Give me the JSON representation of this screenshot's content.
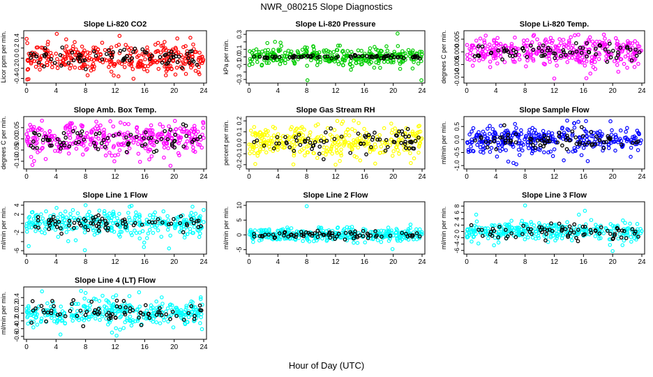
{
  "figure": {
    "title": "NWR_080215  Slope Diagnostics",
    "xlabel": "Hour of Day (UTC)"
  },
  "chart_data": [
    {
      "type": "scatter",
      "title": "Slope Li-820 CO2",
      "ylabel": "Licor ppm per min.",
      "color": "#ff0000",
      "xlim": [
        0,
        24
      ],
      "ylim": [
        -0.45,
        0.5
      ],
      "yticks": [
        -0.4,
        -0.2,
        0.0,
        0.2,
        0.4
      ],
      "ytick_labels": [
        "-0.4",
        "-0.2",
        "0.0",
        "0.2",
        "0.4"
      ],
      "xticks": [
        0,
        4,
        8,
        12,
        16,
        20,
        24
      ],
      "spread": 0.14,
      "black_spread": 0.09,
      "outliers": [
        [
          4.1,
          0.48
        ],
        [
          12.6,
          0.44
        ],
        [
          0.1,
          -0.42
        ],
        [
          18.7,
          0.32
        ],
        [
          23.3,
          -0.28
        ]
      ]
    },
    {
      "type": "scatter",
      "title": "Slope Li-820 Pressure",
      "ylabel": "kPa per min.",
      "color": "#00cc00",
      "xlim": [
        0,
        24
      ],
      "ylim": [
        -0.32,
        0.32
      ],
      "yticks": [
        -0.3,
        -0.2,
        -0.1,
        0.0,
        0.1,
        0.2,
        0.3
      ],
      "ytick_labels": [
        "-0.3",
        "",
        "-0.1",
        "0.0",
        "0.1",
        "",
        "0.3"
      ],
      "xticks": [
        0,
        4,
        8,
        12,
        16,
        20,
        24
      ],
      "spread": 0.06,
      "black_spread": 0.01,
      "outliers": [
        [
          20.6,
          0.31
        ],
        [
          8.1,
          -0.31
        ],
        [
          23.9,
          -0.31
        ],
        [
          3.6,
          0.2
        ],
        [
          12.6,
          0.15
        ]
      ]
    },
    {
      "type": "scatter",
      "title": "Slope Li-820 Temp.",
      "ylabel": "degrees C per min.",
      "color": "#ff00ff",
      "xlim": [
        0,
        24
      ],
      "ylim": [
        -0.0115,
        0.0075
      ],
      "yticks": [
        -0.01,
        -0.005,
        0.0,
        0.005
      ],
      "ytick_labels": [
        "-0.010",
        "-0.005",
        "0.000",
        "0.005"
      ],
      "xticks": [
        0,
        4,
        8,
        12,
        16,
        20,
        24
      ],
      "spread": 0.003,
      "black_spread": 0.0015,
      "outliers": [
        [
          18.8,
          0.0068
        ],
        [
          12.0,
          -0.0105
        ],
        [
          16.4,
          -0.0104
        ],
        [
          2.4,
          0.0045
        ]
      ]
    },
    {
      "type": "scatter",
      "title": "Slope Amb. Box Temp.",
      "ylabel": "degrees C per min.",
      "color": "#ff00ff",
      "xlim": [
        0,
        24
      ],
      "ylim": [
        -0.125,
        0.09
      ],
      "yticks": [
        -0.1,
        -0.05,
        0.0,
        0.05
      ],
      "ytick_labels": [
        "-0.10",
        "-0.05",
        "0.00",
        "0.05"
      ],
      "xticks": [
        0,
        4,
        8,
        12,
        16,
        20,
        24
      ],
      "spread": 0.035,
      "black_spread": 0.025,
      "outliers": [
        [
          19.5,
          -0.12
        ],
        [
          20.1,
          0.08
        ],
        [
          11.9,
          -0.1
        ],
        [
          2.6,
          -0.09
        ]
      ]
    },
    {
      "type": "scatter",
      "title": "Slope Gas Stream RH",
      "ylabel": "percent per min.",
      "color": "#ffff00",
      "xlim": [
        0,
        24
      ],
      "ylim": [
        -0.22,
        0.22
      ],
      "yticks": [
        -0.2,
        -0.1,
        0.0,
        0.1,
        0.2
      ],
      "ytick_labels": [
        "-0.2",
        "-0.1",
        "0.0",
        "0.1",
        "0.2"
      ],
      "xticks": [
        0,
        4,
        8,
        12,
        16,
        20,
        24
      ],
      "spread": 0.08,
      "black_spread": 0.05,
      "outliers": [
        [
          12.0,
          -0.2
        ],
        [
          17.5,
          -0.19
        ],
        [
          15.2,
          0.18
        ],
        [
          23.5,
          0.15
        ]
      ]
    },
    {
      "type": "scatter",
      "title": "Slope Sample Flow",
      "ylabel": "ml/min per min.",
      "color": "#0000ff",
      "xlim": [
        0,
        24
      ],
      "ylim": [
        -1.05,
        0.8
      ],
      "yticks": [
        -1.0,
        -0.5,
        0.0,
        0.5
      ],
      "ytick_labels": [
        "-1.0",
        "-0.5",
        "0.0",
        "0.5"
      ],
      "xticks": [
        0,
        4,
        8,
        12,
        16,
        20,
        24
      ],
      "spread": 0.25,
      "black_spread": 0.2,
      "outliers": [
        [
          6.4,
          -0.9
        ],
        [
          19.7,
          0.7
        ],
        [
          6.8,
          -0.95
        ],
        [
          15.3,
          0.68
        ],
        [
          13.3,
          -0.8
        ]
      ]
    },
    {
      "type": "scatter",
      "title": "Slope Line 1 Flow",
      "ylabel": "ml/min per min.",
      "color": "#00ffff",
      "xlim": [
        0,
        24
      ],
      "ylim": [
        -6.3,
        4.3
      ],
      "yticks": [
        -6,
        -4,
        -2,
        0,
        2,
        4
      ],
      "ytick_labels": [
        "-6",
        "",
        "-2",
        "",
        "2",
        "4"
      ],
      "xticks": [
        0,
        4,
        8,
        12,
        16,
        20,
        24
      ],
      "spread": 1.4,
      "black_spread": 0.9,
      "outliers": [
        [
          8.0,
          4.0
        ],
        [
          7.9,
          -5.9
        ],
        [
          15.9,
          -5.2
        ],
        [
          19.3,
          -5.5
        ],
        [
          0.3,
          -5.0
        ]
      ]
    },
    {
      "type": "scatter",
      "title": "Slope Line 2 Flow",
      "ylabel": "ml/min per min.",
      "color": "#00ffff",
      "xlim": [
        0,
        24
      ],
      "ylim": [
        -5.8,
        10.5
      ],
      "yticks": [
        -5,
        0,
        5,
        10
      ],
      "ytick_labels": [
        "-5",
        "0",
        "5",
        "10"
      ],
      "xticks": [
        0,
        4,
        8,
        12,
        16,
        20,
        24
      ],
      "spread": 1.1,
      "black_spread": 0.8,
      "outliers": [
        [
          8.0,
          9.7
        ],
        [
          19.9,
          -4.8
        ],
        [
          22.4,
          3.5
        ]
      ]
    },
    {
      "type": "scatter",
      "title": "Slope Line 3 Flow",
      "ylabel": "ml/min per min.",
      "color": "#00ffff",
      "xlim": [
        0,
        24
      ],
      "ylim": [
        -6.5,
        8.7
      ],
      "yticks": [
        -6,
        -4,
        -2,
        0,
        2,
        4,
        6,
        8
      ],
      "ytick_labels": [
        "-6",
        "-4",
        "-2",
        "0",
        "2",
        "4",
        "6",
        "8"
      ],
      "xticks": [
        0,
        4,
        8,
        12,
        16,
        20,
        24
      ],
      "spread": 1.4,
      "black_spread": 1.2,
      "outliers": [
        [
          8.0,
          8.2
        ],
        [
          16.2,
          6.5
        ],
        [
          20.0,
          -6.2
        ],
        [
          1.3,
          5.3
        ],
        [
          1.6,
          -3.8
        ]
      ]
    },
    {
      "type": "scatter",
      "title": "Slope Line 4 (LT) Flow",
      "ylabel": "ml/min per min.",
      "color": "#00ffff",
      "xlim": [
        0,
        24
      ],
      "ylim": [
        -0.62,
        0.62
      ],
      "yticks": [
        -0.6,
        -0.4,
        -0.2,
        0.0,
        0.2,
        0.4
      ],
      "ytick_labels": [
        "-0.6",
        "-0.4",
        "-0.2",
        "0.0",
        "0.2",
        "0.4"
      ],
      "xticks": [
        0,
        4,
        8,
        12,
        16,
        20,
        24
      ],
      "spread": 0.18,
      "black_spread": 0.16,
      "outliers": [
        [
          2.1,
          0.56
        ],
        [
          8.0,
          0.52
        ],
        [
          12.2,
          -0.58
        ],
        [
          4.6,
          -0.55
        ]
      ]
    }
  ]
}
